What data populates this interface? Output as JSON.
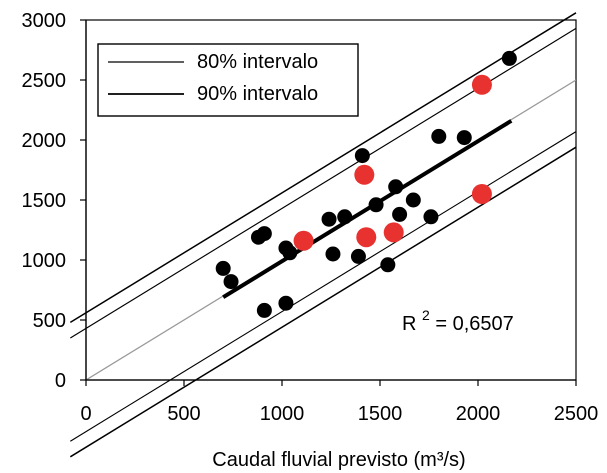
{
  "chart_data": {
    "type": "scatter",
    "title": "",
    "xlabel": "Caudal fluvial previsto (m³/s)",
    "ylabel": "",
    "xlim": [
      0,
      2500
    ],
    "ylim": [
      0,
      3000
    ],
    "x_ticks": [
      "0",
      "500",
      "1000",
      "1500",
      "2000",
      "2500"
    ],
    "y_ticks": [
      "0",
      "500",
      "1000",
      "1500",
      "2000",
      "2500",
      "3000"
    ],
    "grid": false,
    "legend_position": "top-left",
    "legend": [
      {
        "label": "80% intervalo",
        "line_style": "thin"
      },
      {
        "label": "90% intervalo",
        "line_style": "medium"
      }
    ],
    "annotation": {
      "prefix": "R",
      "superscript": "2",
      "suffix": " = 0,6507",
      "x": 1700,
      "y": 480
    },
    "series": [
      {
        "color": "#000000",
        "marker": "circle",
        "points": [
          [
            700,
            930
          ],
          [
            740,
            820
          ],
          [
            880,
            1190
          ],
          [
            910,
            1220
          ],
          [
            910,
            580
          ],
          [
            1020,
            1100
          ],
          [
            1020,
            640
          ],
          [
            1040,
            1060
          ],
          [
            1240,
            1340
          ],
          [
            1260,
            1050
          ],
          [
            1320,
            1360
          ],
          [
            1390,
            1030
          ],
          [
            1410,
            1870
          ],
          [
            1480,
            1460
          ],
          [
            1540,
            960
          ],
          [
            1580,
            1610
          ],
          [
            1600,
            1380
          ],
          [
            1670,
            1500
          ],
          [
            1760,
            1360
          ],
          [
            1800,
            2030
          ],
          [
            1930,
            2020
          ],
          [
            2160,
            2680
          ]
        ]
      },
      {
        "color": "#e8322f",
        "marker": "circle",
        "points": [
          [
            1110,
            1160
          ],
          [
            1420,
            1710
          ],
          [
            1430,
            1190
          ],
          [
            1570,
            1230
          ],
          [
            2020,
            2460
          ],
          [
            2020,
            1550
          ]
        ]
      }
    ],
    "regression_line": {
      "color": "#000000",
      "x": [
        700,
        2170
      ],
      "y": [
        690,
        2160
      ]
    },
    "reference_line": {
      "color": "#9a9a9a",
      "x": [
        0,
        2500
      ],
      "y": [
        0,
        2500
      ]
    },
    "interval_lines": [
      {
        "name": "90% intervalo upper",
        "slope": 1,
        "intercept": 560
      },
      {
        "name": "80% intervalo upper",
        "slope": 1,
        "intercept": 430
      },
      {
        "name": "80% intervalo lower",
        "slope": 1,
        "intercept": -430
      },
      {
        "name": "90% intervalo lower",
        "slope": 1,
        "intercept": -560
      }
    ]
  }
}
